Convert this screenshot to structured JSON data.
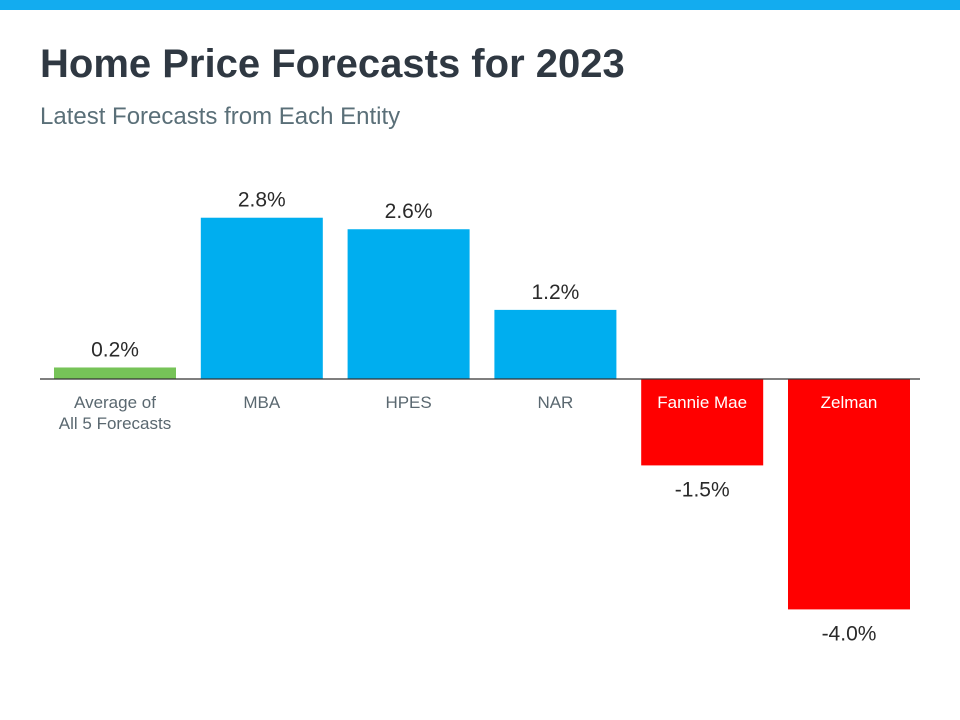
{
  "colors": {
    "top_bar": "#13acef",
    "average": "#76c358",
    "positive": "#00aeef",
    "negative": "#ff0000",
    "axis": "#333333"
  },
  "chart_data": {
    "type": "bar",
    "title": "Home Price Forecasts for 2023",
    "subtitle": "Latest Forecasts from Each Entity",
    "categories": [
      [
        "Average of",
        "All 5 Forecasts"
      ],
      [
        "MBA"
      ],
      [
        "HPES"
      ],
      [
        "NAR"
      ],
      [
        "Fannie Mae"
      ],
      [
        "Zelman"
      ]
    ],
    "values": [
      0.2,
      2.8,
      2.6,
      1.2,
      -1.5,
      -4.0
    ],
    "data_labels": [
      "0.2%",
      "2.8%",
      "2.6%",
      "1.2%",
      "-1.5%",
      "-4.0%"
    ],
    "unit": "%",
    "ylim": [
      -4.0,
      2.8
    ],
    "grid": false,
    "legend": "none"
  }
}
